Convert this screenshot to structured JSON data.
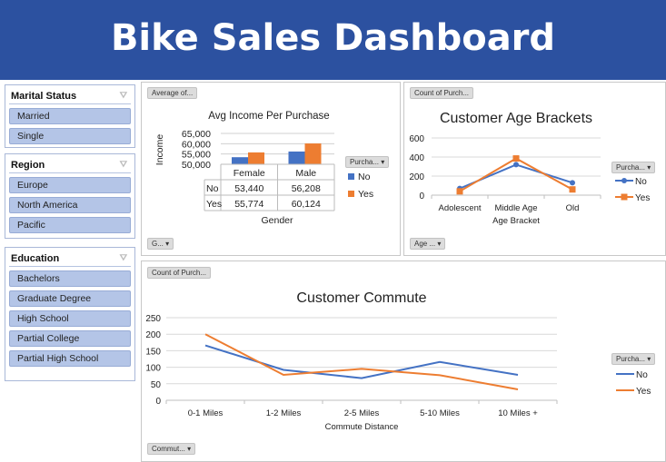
{
  "title": "Bike Sales Dashboard",
  "slicers": [
    {
      "title": "Marital Status",
      "items": [
        "Married",
        "Single"
      ]
    },
    {
      "title": "Region",
      "items": [
        "Europe",
        "North America",
        "Pacific"
      ]
    },
    {
      "title": "Education",
      "items": [
        "Bachelors",
        "Graduate Degree",
        "High School",
        "Partial College",
        "Partial High School"
      ]
    }
  ],
  "colors": {
    "header": "#2c51a0",
    "no": "#4472c4",
    "yes": "#ed7d31"
  },
  "icons": {
    "slicer_clear": "clear-filter-icon",
    "dropdown": "chevron-down-icon"
  },
  "panels": {
    "income": {
      "value_btn": "Average of...",
      "axis_btn": "G...",
      "legend_btn": "Purcha..."
    },
    "age": {
      "value_btn": "Count of Purch...",
      "axis_btn": "Age ...",
      "legend_btn": "Purcha..."
    },
    "commute": {
      "value_btn": "Count of Purch...",
      "axis_btn": "Commut...",
      "legend_btn": "Purcha..."
    }
  },
  "chart_data": [
    {
      "type": "bar",
      "title": "Avg Income Per Purchase",
      "xlabel": "Gender",
      "ylabel": "Income",
      "categories": [
        "Female",
        "Male"
      ],
      "series": [
        {
          "name": "No",
          "values": [
            53440,
            56208
          ]
        },
        {
          "name": "Yes",
          "values": [
            55774,
            60124
          ]
        }
      ],
      "ylim": [
        50000,
        65000
      ],
      "yticks": [
        "50,000",
        "55,000",
        "60,000",
        "65,000"
      ],
      "table": {
        "rows": [
          [
            "No",
            "53,440",
            "56,208"
          ],
          [
            "Yes",
            "55,774",
            "60,124"
          ]
        ]
      },
      "legend": "right",
      "grid": true
    },
    {
      "type": "line",
      "title": "Customer Age Brackets",
      "xlabel": "Age Bracket",
      "ylabel": "",
      "categories": [
        "Adolescent",
        "Middle Age",
        "Old"
      ],
      "series": [
        {
          "name": "No",
          "values": [
            70,
            320,
            130
          ]
        },
        {
          "name": "Yes",
          "values": [
            40,
            385,
            60
          ]
        }
      ],
      "ylim": [
        0,
        600
      ],
      "yticks": [
        "0",
        "200",
        "400",
        "600"
      ],
      "legend": "right",
      "grid": true,
      "markers": true
    },
    {
      "type": "line",
      "title": "Customer Commute",
      "xlabel": "Commute Distance",
      "ylabel": "",
      "categories": [
        "0-1 Miles",
        "1-2 Miles",
        "2-5 Miles",
        "5-10 Miles",
        "10 Miles +"
      ],
      "series": [
        {
          "name": "No",
          "values": [
            166,
            92,
            67,
            116,
            77
          ]
        },
        {
          "name": "Yes",
          "values": [
            200,
            77,
            95,
            76,
            33
          ]
        }
      ],
      "ylim": [
        0,
        250
      ],
      "yticks": [
        "0",
        "50",
        "100",
        "150",
        "200",
        "250"
      ],
      "legend": "right",
      "grid": true,
      "markers": false
    }
  ]
}
